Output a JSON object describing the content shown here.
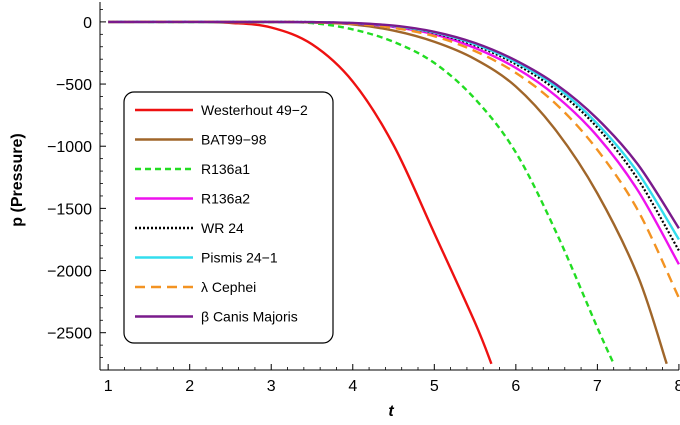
{
  "chart_data": {
    "type": "line",
    "xlabel": "t",
    "ylabel": "p (Pressure)",
    "xlim": [
      0.9,
      8.05
    ],
    "ylim": [
      -2800,
      160
    ],
    "xticks": [
      "1",
      "2",
      "3",
      "4",
      "5",
      "6",
      "7",
      "8"
    ],
    "yticks": [
      "0",
      "−500",
      "−1000",
      "−1500",
      "−2000",
      "−2500"
    ],
    "xtick_values": [
      1,
      2,
      3,
      4,
      5,
      6,
      7,
      8
    ],
    "ytick_values": [
      0,
      -500,
      -1000,
      -1500,
      -2000,
      -2500
    ],
    "grid": false,
    "legend_position": "left",
    "series": [
      {
        "name": "Westerhout 49−2",
        "color": "#ee1111",
        "dash": "solid",
        "x": [
          1.0,
          2.0,
          2.5,
          3.0,
          3.5,
          4.0,
          4.5,
          5.0,
          5.5,
          5.7
        ],
        "y": [
          0,
          0,
          -8,
          -45,
          -180,
          -480,
          -990,
          -1700,
          -2420,
          -2750
        ]
      },
      {
        "name": "BAT99−98",
        "color": "#a0662a",
        "dash": "solid",
        "x": [
          1.0,
          3.0,
          3.5,
          4.0,
          4.5,
          5.0,
          5.5,
          6.0,
          6.5,
          7.0,
          7.5,
          7.85
        ],
        "y": [
          0,
          0,
          -5,
          -20,
          -70,
          -160,
          -300,
          -520,
          -880,
          -1380,
          -2050,
          -2750
        ]
      },
      {
        "name": "R136a1",
        "color": "#22dd22",
        "dash": "dashed",
        "x": [
          1.0,
          3.0,
          3.5,
          4.0,
          4.5,
          5.0,
          5.5,
          6.0,
          6.5,
          7.0,
          7.2
        ],
        "y": [
          0,
          -3,
          -10,
          -60,
          -160,
          -330,
          -620,
          -1050,
          -1700,
          -2460,
          -2750
        ]
      },
      {
        "name": "R136a2",
        "color": "#ee11ee",
        "dash": "solid",
        "x": [
          1.0,
          3.0,
          3.5,
          4.0,
          4.5,
          5.0,
          5.5,
          6.0,
          6.5,
          7.0,
          7.5,
          8.0
        ],
        "y": [
          0,
          0,
          -3,
          -12,
          -40,
          -100,
          -210,
          -370,
          -600,
          -920,
          -1360,
          -1950
        ]
      },
      {
        "name": "WR 24",
        "color": "#000000",
        "dash": "dotted",
        "x": [
          1.0,
          3.0,
          3.5,
          4.0,
          4.5,
          5.0,
          5.5,
          6.0,
          6.5,
          7.0,
          7.5,
          8.0
        ],
        "y": [
          0,
          0,
          -2,
          -10,
          -35,
          -90,
          -190,
          -340,
          -550,
          -850,
          -1270,
          -1840
        ]
      },
      {
        "name": "Pismis 24−1",
        "color": "#33ddee",
        "dash": "solid",
        "x": [
          1.0,
          3.0,
          3.5,
          4.0,
          4.5,
          5.0,
          5.5,
          6.0,
          6.5,
          7.0,
          7.5,
          8.0
        ],
        "y": [
          0,
          0,
          -2,
          -10,
          -33,
          -85,
          -180,
          -325,
          -525,
          -820,
          -1215,
          -1750
        ]
      },
      {
        "name": "λ Cephei",
        "color": "#f39322",
        "dash": "longdash",
        "x": [
          1.0,
          3.0,
          3.5,
          4.0,
          4.5,
          5.0,
          5.5,
          6.0,
          6.5,
          7.0,
          7.5,
          8.0
        ],
        "y": [
          0,
          0,
          -4,
          -15,
          -48,
          -115,
          -235,
          -410,
          -665,
          -1030,
          -1520,
          -2220
        ]
      },
      {
        "name": "β Canis Majoris",
        "color": "#7a1a8c",
        "dash": "solid",
        "x": [
          1.0,
          3.0,
          3.5,
          4.0,
          4.5,
          5.0,
          5.5,
          6.0,
          6.5,
          7.0,
          7.5,
          8.0
        ],
        "y": [
          0,
          0,
          -2,
          -9,
          -30,
          -80,
          -170,
          -310,
          -505,
          -780,
          -1150,
          -1660
        ]
      }
    ]
  }
}
